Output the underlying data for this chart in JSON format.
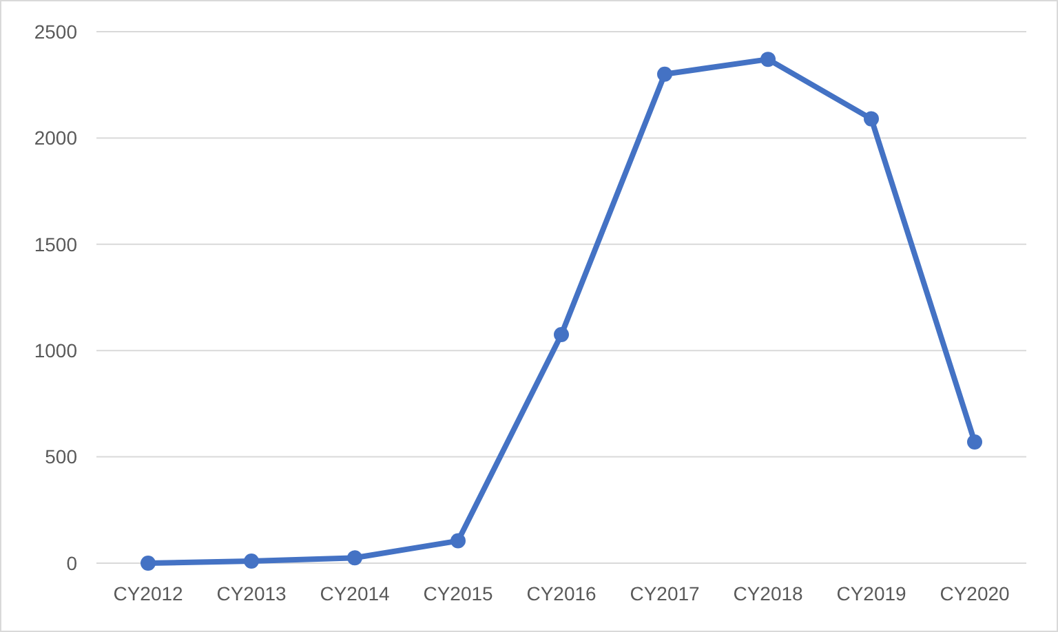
{
  "chart_data": {
    "type": "line",
    "categories": [
      "CY2012",
      "CY2013",
      "CY2014",
      "CY2015",
      "CY2016",
      "CY2017",
      "CY2018",
      "CY2019",
      "CY2020"
    ],
    "series": [
      {
        "color": "#4472c4",
        "values": [
          0,
          10,
          25,
          105,
          1075,
          2300,
          2370,
          2090,
          570
        ]
      }
    ],
    "ylim": [
      0,
      2500
    ],
    "yticks": [
      0,
      500,
      1000,
      1500,
      2000,
      2500
    ],
    "grid": "y",
    "marker": "circle",
    "line_style": "solid"
  }
}
